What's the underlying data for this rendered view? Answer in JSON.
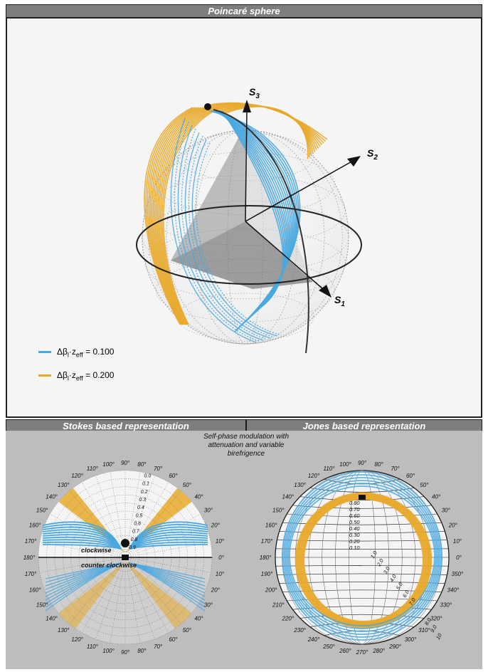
{
  "top": {
    "title": "Poincaré sphere",
    "axes": {
      "s1": "S",
      "s1_sub": "1",
      "s2": "S",
      "s2_sub": "2",
      "s3": "S",
      "s3_sub": "3"
    },
    "legend": [
      {
        "text": "Δβ",
        "sub1": "l",
        "mid": "·z",
        "sub2": "eff",
        "value": " = 0.100",
        "color": "#4aa8e0"
      },
      {
        "text": "Δβ",
        "sub1": "l",
        "mid": "·z",
        "sub2": "eff",
        "value": " = 0.200",
        "color": "#e8a92a"
      }
    ]
  },
  "bottom": {
    "left_title": "Stokes based representation",
    "right_title": "Jones based representation",
    "center_note": [
      "Self-phase modulation with",
      "attenuation and variable",
      "birefrigence"
    ],
    "stokes": {
      "top_angles": [
        "180°",
        "170°",
        "160°",
        "150°",
        "140°",
        "130°",
        "120°",
        "110°",
        "100°",
        "90°",
        "80°",
        "70°",
        "60°",
        "50°",
        "40°",
        "30°",
        "20°",
        "10°",
        "0°"
      ],
      "bottom_angles": [
        "180°",
        "170°",
        "160°",
        "150°",
        "140°",
        "130°",
        "120°",
        "110°",
        "100°",
        "90°",
        "80°",
        "70°",
        "60°",
        "50°",
        "40°",
        "30°",
        "20°",
        "10°",
        "0°"
      ],
      "radial_labels": [
        "0.0",
        "0.1",
        "0.2",
        "0.3",
        "0.4",
        "0.5",
        "0.6",
        "0.7",
        "0.8",
        "0.9"
      ],
      "clockwise": "clockwise",
      "counter_clockwise": "counter clockwise"
    },
    "jones": {
      "angles": [
        "0°",
        "10°",
        "20°",
        "30°",
        "40°",
        "50°",
        "60°",
        "70°",
        "80°",
        "90°",
        "100°",
        "110°",
        "120°",
        "130°",
        "140°",
        "150°",
        "160°",
        "170°",
        "180°",
        "190°",
        "200°",
        "210°",
        "220°",
        "230°",
        "240°",
        "250°",
        "260°",
        "270°",
        "280°",
        "290°",
        "300°",
        "310°",
        "320°",
        "330°",
        "340°",
        "350°"
      ],
      "radial_labels": [
        "0.80",
        "0.70",
        "0.60",
        "0.50",
        "0.40",
        "0.30",
        "0.20",
        "0.10"
      ],
      "diag_labels": [
        "1.0",
        "2.0",
        "3.0",
        "4.0",
        "5.0",
        "6.0",
        "7.0"
      ],
      "diag_labels2": [
        "8.0",
        "9.0",
        "10"
      ]
    },
    "colors": {
      "blue": "#4aa8e0",
      "orange": "#e8a92a"
    }
  }
}
